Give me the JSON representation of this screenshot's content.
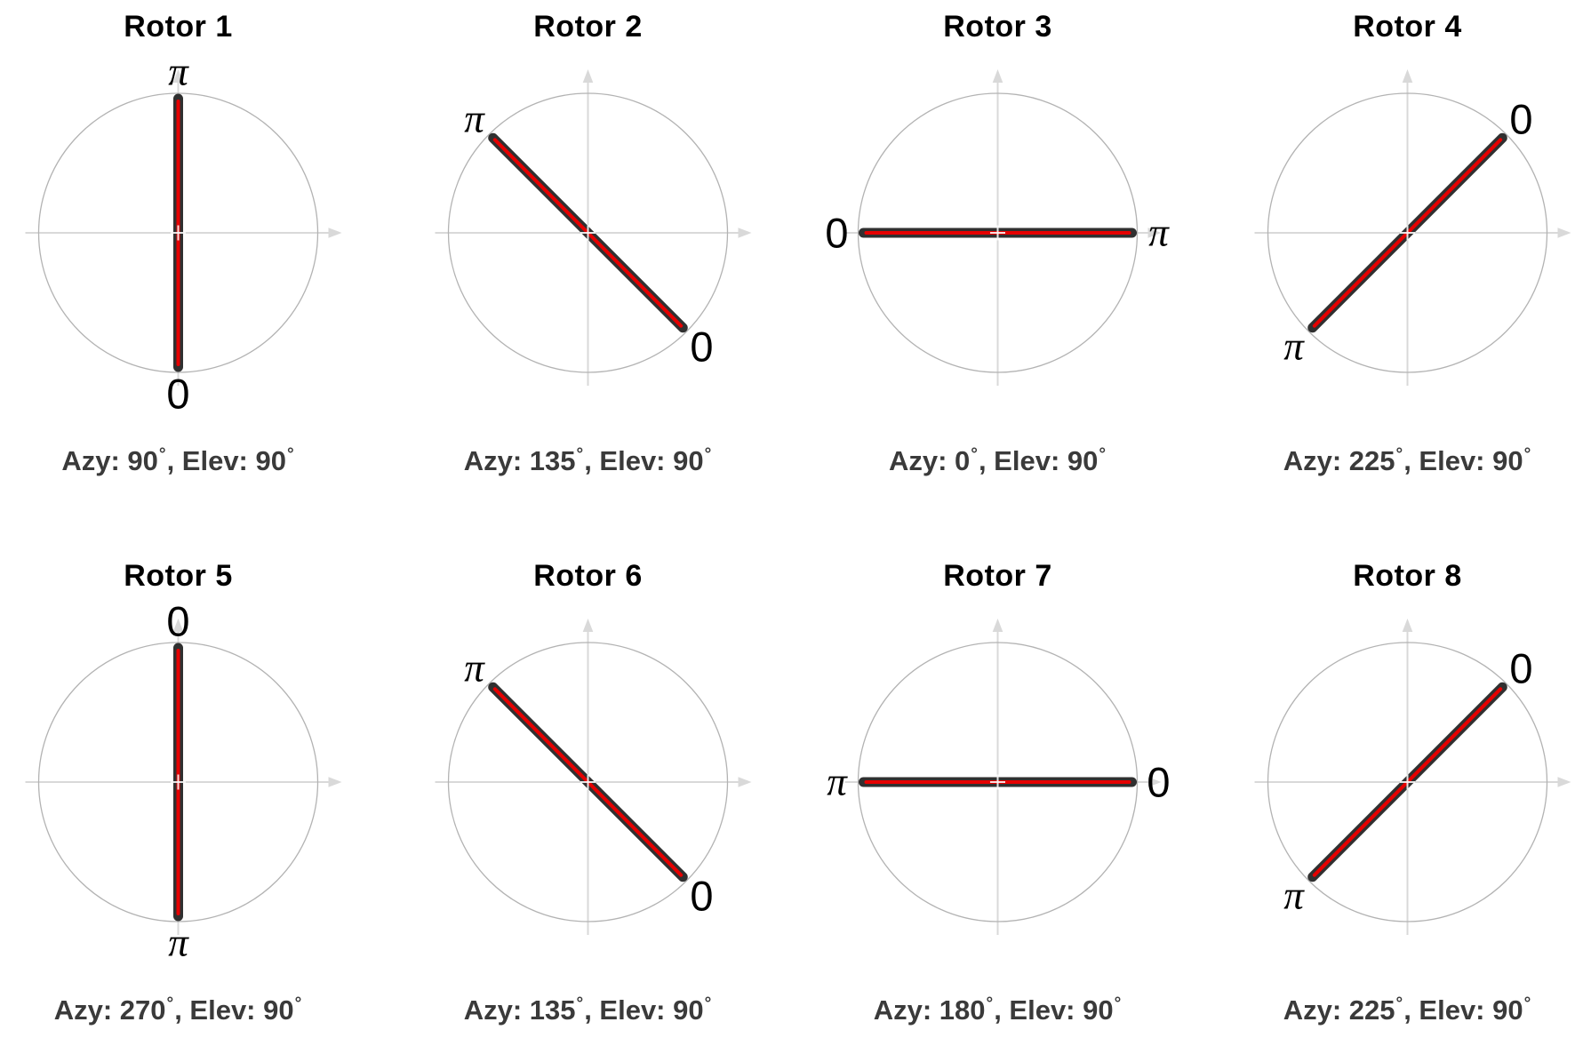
{
  "chart_data": {
    "type": "polar",
    "layout": {
      "rows": 2,
      "cols": 4
    },
    "zero_label": "0",
    "pi_label": "π",
    "caption_azy_prefix": "Azy: ",
    "caption_elev_prefix": ", Elev: ",
    "degree_symbol": "°",
    "colors": {
      "line_core": "#e60000",
      "line_outline": "#303030",
      "circle": "#b3b3b3",
      "axis": "#d9d9d9",
      "title": "#000000",
      "caption": "#3a3a3a"
    },
    "subplots": [
      {
        "title": "Rotor 1",
        "azimuth_deg": "90",
        "elevation_deg": "90",
        "zero_angle_deg": 270,
        "pi_angle_deg": 90
      },
      {
        "title": "Rotor 2",
        "azimuth_deg": "135",
        "elevation_deg": "90",
        "zero_angle_deg": 315,
        "pi_angle_deg": 135
      },
      {
        "title": "Rotor 3",
        "azimuth_deg": "0",
        "elevation_deg": "90",
        "zero_angle_deg": 180,
        "pi_angle_deg": 0
      },
      {
        "title": "Rotor 4",
        "azimuth_deg": "225",
        "elevation_deg": "90",
        "zero_angle_deg": 45,
        "pi_angle_deg": 225
      },
      {
        "title": "Rotor 5",
        "azimuth_deg": "270",
        "elevation_deg": "90",
        "zero_angle_deg": 90,
        "pi_angle_deg": 270
      },
      {
        "title": "Rotor 6",
        "azimuth_deg": "135",
        "elevation_deg": "90",
        "zero_angle_deg": 315,
        "pi_angle_deg": 135
      },
      {
        "title": "Rotor 7",
        "azimuth_deg": "180",
        "elevation_deg": "90",
        "zero_angle_deg": 0,
        "pi_angle_deg": 180
      },
      {
        "title": "Rotor 8",
        "azimuth_deg": "225",
        "elevation_deg": "90",
        "zero_angle_deg": 45,
        "pi_angle_deg": 225
      }
    ]
  }
}
